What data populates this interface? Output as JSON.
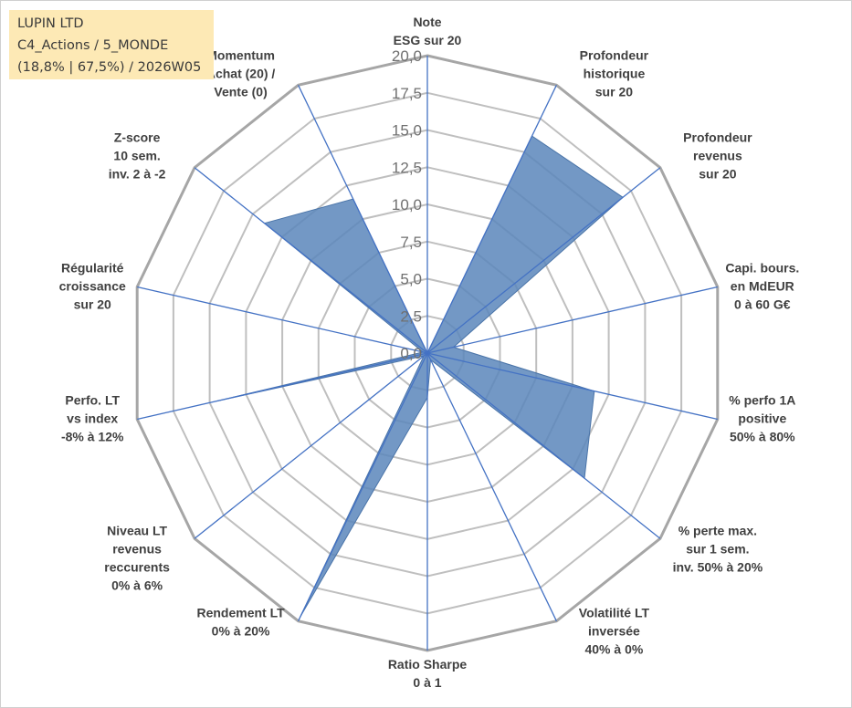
{
  "info_box": {
    "line1": "LUPIN LTD",
    "line2": "C4_Actions / 5_MONDE",
    "line3": "(18,8% | 67,5%) / 2026W05"
  },
  "chart_data": {
    "type": "radar",
    "title": "",
    "rmin": 0,
    "rmax": 20,
    "ticks": [
      "0,0",
      "2,5",
      "5,0",
      "7,5",
      "10,0",
      "12,5",
      "15,0",
      "17,5",
      "20,0"
    ],
    "grid": true,
    "legend": "none",
    "colors": {
      "fill": "#5b86bb",
      "spoke": "#4472c4",
      "ring": "#bfbfbf",
      "outer_ring": "#a6a6a6"
    },
    "axes": [
      {
        "label": [
          "Note",
          "ESG sur 20"
        ],
        "value": 0
      },
      {
        "label": [
          "Profondeur",
          "historique",
          "sur 20"
        ],
        "value": 16.2
      },
      {
        "label": [
          "Profondeur",
          "revenus",
          "sur 20"
        ],
        "value": 16.8
      },
      {
        "label": [
          "Capi. bours.",
          "en MdEUR",
          "0 à 60 G€"
        ],
        "value": 1.8
      },
      {
        "label": [
          "% perfo 1A",
          "positive",
          "50% à 80%"
        ],
        "value": 11.5
      },
      {
        "label": [
          "% perte max.",
          "sur 1 sem.",
          "inv. 50% à 20%"
        ],
        "value": 13.5
      },
      {
        "label": [
          "Volatilité LT",
          "inversée",
          "40% à 0%"
        ],
        "value": 0.5
      },
      {
        "label": [
          "Ratio Sharpe",
          "0 à 1"
        ],
        "value": 3.0
      },
      {
        "label": [
          "Rendement LT",
          "0% à 20%"
        ],
        "value": 19.7
      },
      {
        "label": [
          "Niveau LT",
          "revenus",
          "reccurents",
          "0% à 6%"
        ],
        "value": 0.3
      },
      {
        "label": [
          "Perfo. LT",
          "vs index",
          "-8% à 12%"
        ],
        "value": 14.5
      },
      {
        "label": [
          "Régularité",
          "croissance",
          "sur 20"
        ],
        "value": 0.3
      },
      {
        "label": [
          "Z-score",
          "10 sem.",
          "inv. 2 à -2"
        ],
        "value": 14.0
      },
      {
        "label": [
          "Momentum",
          "Achat (20) /",
          "Vente (0)"
        ],
        "value": 11.5
      }
    ]
  }
}
